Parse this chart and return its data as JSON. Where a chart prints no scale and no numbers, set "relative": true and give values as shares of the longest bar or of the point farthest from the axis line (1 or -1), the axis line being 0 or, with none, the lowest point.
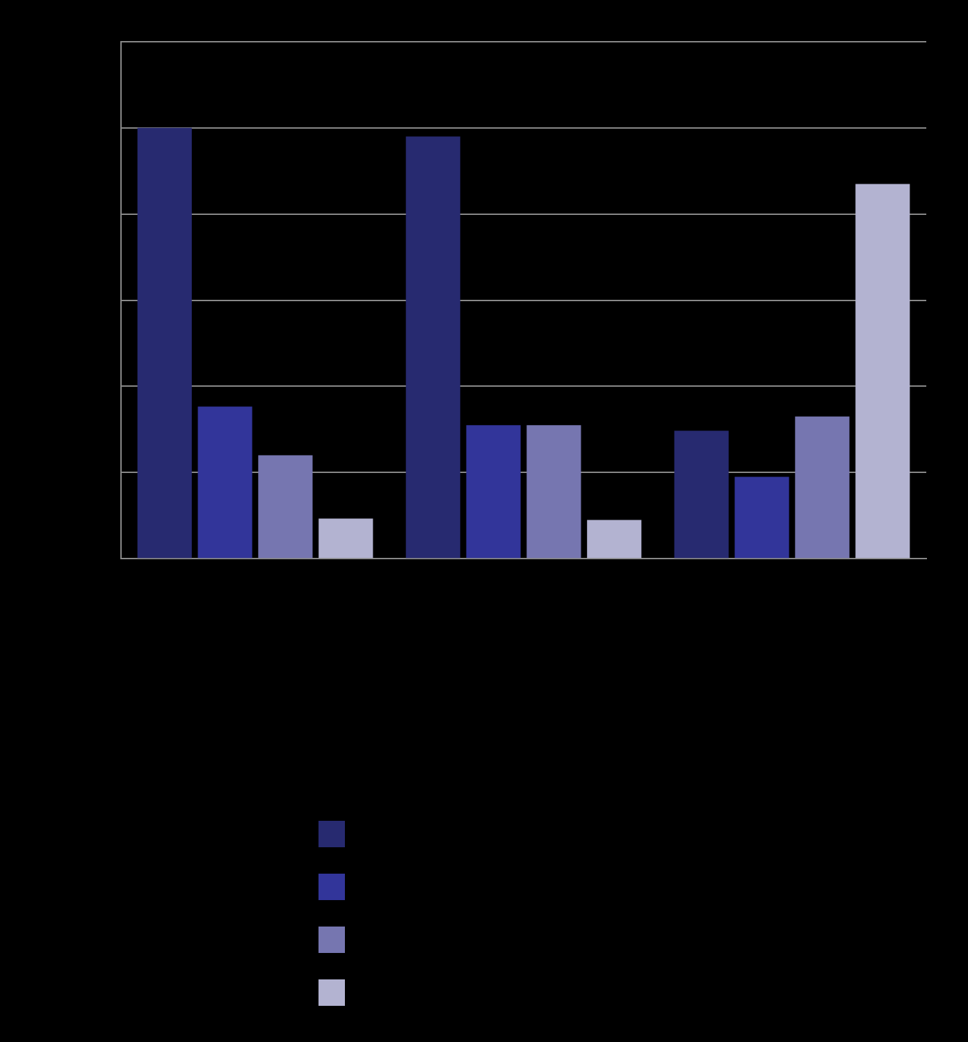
{
  "chart_data": {
    "type": "bar",
    "relative": true,
    "categories": [
      null,
      null,
      null
    ],
    "series": [
      {
        "color": "#272a70",
        "values": [
          1,
          0.98,
          0.297
        ]
      },
      {
        "color": "#32359a",
        "values": [
          0.353,
          0.31,
          0.19
        ]
      },
      {
        "color": "#7676b0",
        "values": [
          0.24,
          0.31,
          0.33
        ]
      },
      {
        "color": "#b3b3d1",
        "values": [
          0.093,
          0.09,
          0.87
        ]
      }
    ],
    "grid": "y"
  }
}
